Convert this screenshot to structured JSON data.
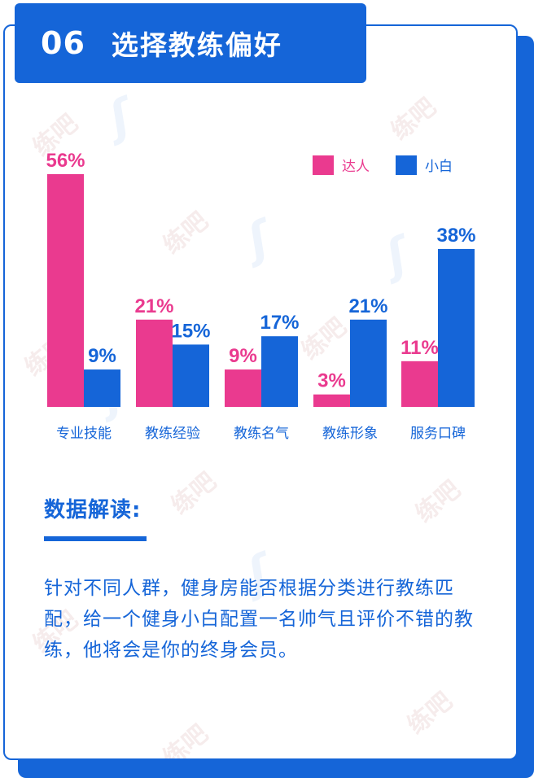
{
  "header": {
    "number": "06",
    "title": "选择教练偏好"
  },
  "colors": {
    "primary": "#1565d8",
    "pink": "#ea3a8f",
    "blue": "#1565d8"
  },
  "chart_data": {
    "type": "bar",
    "categories": [
      "专业技能",
      "教练经验",
      "教练名气",
      "教练形象",
      "服务口碑"
    ],
    "series": [
      {
        "name": "达人",
        "values": [
          56,
          21,
          9,
          3,
          11
        ],
        "labels": [
          "56%",
          "21%",
          "9%",
          "3%",
          "11%"
        ],
        "color": "#ea3a8f"
      },
      {
        "name": "小白",
        "values": [
          9,
          15,
          17,
          21,
          38
        ],
        "labels": [
          "9%",
          "15%",
          "17%",
          "21%",
          "38%"
        ],
        "color": "#1565d8"
      }
    ],
    "ylim": [
      0,
      56
    ],
    "legend_position": "top-right",
    "grid": false
  },
  "interpretation": {
    "title": "数据解读:",
    "text": "针对不同人群，健身房能否根据分类进行教练匹配，给一个健身小白配置一名帅气且评价不错的教练，他将会是你的终身会员。"
  },
  "watermark": "练吧"
}
